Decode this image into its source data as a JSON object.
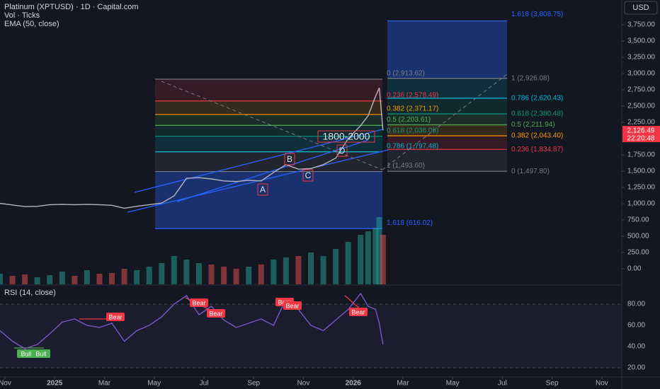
{
  "header": {
    "title": "Platinum (XPTUSD) · 1D · Capital.com",
    "volume": "Vol · Ticks",
    "ema": "EMA (50, close)",
    "currency": "USD"
  },
  "price_tag": {
    "value": "2,126.49",
    "countdown": "22:20:48"
  },
  "chart_data": [
    {
      "type": "line",
      "color": "#b2b5be",
      "x": [
        -0.2,
        0.3,
        0.8,
        1.3,
        1.8,
        2.3,
        2.8,
        3.3,
        3.8,
        4.3,
        4.8,
        5.3,
        5.8,
        6.3,
        6.8,
        7.3,
        7.8,
        8.3,
        8.8,
        9.3,
        9.8,
        10.3,
        10.8,
        11.3,
        11.8,
        12.3,
        12.8,
        13.3,
        13.8,
        14.3,
        14.6,
        14.9,
        15.05,
        15.2
      ],
      "values": [
        1005,
        980,
        955,
        960,
        985,
        990,
        985,
        990,
        985,
        975,
        930,
        960,
        985,
        1010,
        1120,
        1390,
        1400,
        1380,
        1350,
        1340,
        1360,
        1350,
        1480,
        1600,
        1530,
        1540,
        1600,
        1700,
        2000,
        2200,
        2350,
        2650,
        2780,
        2126.49
      ],
      "volume": [
        15,
        12,
        14,
        10,
        13,
        18,
        12,
        20,
        15,
        16,
        22,
        20,
        25,
        30,
        40,
        35,
        30,
        28,
        25,
        22,
        25,
        28,
        35,
        38,
        40,
        45,
        40,
        50,
        60,
        70,
        75,
        80,
        95,
        70
      ],
      "volume_lim": [
        0,
        100
      ],
      "xlim": [
        -0.2,
        24.8
      ],
      "ylim": [
        -239,
        4130
      ],
      "yticks": [
        {
          "value": 3750,
          "label": "3,750.00"
        },
        {
          "value": 3500,
          "label": "3,500.00"
        },
        {
          "value": 3250,
          "label": "3,250.00"
        },
        {
          "value": 3000,
          "label": "3,000.00"
        },
        {
          "value": 2750,
          "label": "2,750.00"
        },
        {
          "value": 2500,
          "label": "2,500.00"
        },
        {
          "value": 2250,
          "label": "2,250.00"
        },
        {
          "value": 1750,
          "label": "1,750.00"
        },
        {
          "value": 1500,
          "label": "1,500.00"
        },
        {
          "value": 1250,
          "label": "1,250.00"
        },
        {
          "value": 1000,
          "label": "1,000.00"
        },
        {
          "value": 750,
          "label": "750.00"
        },
        {
          "value": 500,
          "label": "500.00"
        },
        {
          "value": 250,
          "label": "250.00"
        },
        {
          "value": 0,
          "label": "0.00"
        }
      ],
      "fib_left": [
        {
          "label": "0 (2,913.62)",
          "value": 2913.62,
          "color": "#787b86"
        },
        {
          "label": "0.236 (2,578.49)",
          "value": 2578.49,
          "color": "#f23645"
        },
        {
          "label": "0.382 (2,371.17)",
          "value": 2371.17,
          "color": "#ff9800"
        },
        {
          "label": "0.5 (2,203.61)",
          "value": 2203.61,
          "color": "#4caf50"
        },
        {
          "label": "0.618 (2,036.05)",
          "value": 2036.05,
          "color": "#089981"
        },
        {
          "label": "0.786 (1,797.48)",
          "value": 1797.48,
          "color": "#00bcd4"
        },
        {
          "label": "1 (1,493.60)",
          "value": 1493.6,
          "color": "#787b86"
        },
        {
          "label": "1.618 (616.02)",
          "value": 616.02,
          "color": "#2962ff"
        }
      ],
      "fib_right": [
        {
          "label": "1.618 (3,808.75)",
          "value": 3808.75,
          "color": "#2962ff"
        },
        {
          "label": "1 (2,926.08)",
          "value": 2926.08,
          "color": "#787b86"
        },
        {
          "label": "0.786 (2,620.43)",
          "value": 2620.43,
          "color": "#00bcd4"
        },
        {
          "label": "0.618 (2,380.48)",
          "value": 2380.48,
          "color": "#089981"
        },
        {
          "label": "0.5 (2,211.94)",
          "value": 2211.94,
          "color": "#4caf50"
        },
        {
          "label": "0.382 (2,043.40)",
          "value": 2043.4,
          "color": "#ff9800"
        },
        {
          "label": "0.236 (1,834.87)",
          "value": 1834.87,
          "color": "#f23645"
        },
        {
          "label": "0 (1,497.80)",
          "value": 1497.8,
          "color": "#787b86"
        }
      ],
      "annotations": [
        "A",
        "B",
        "C",
        "D",
        "1800-2000"
      ]
    },
    {
      "type": "line",
      "title": "RSI (14, close)",
      "color": "#7e57c2",
      "x": [
        -0.2,
        0.3,
        0.8,
        1.3,
        1.8,
        2.3,
        2.8,
        3.3,
        3.8,
        4.3,
        4.8,
        5.3,
        5.8,
        6.3,
        6.8,
        7.3,
        7.8,
        8.3,
        8.8,
        9.3,
        9.8,
        10.3,
        10.8,
        11.3,
        11.8,
        12.3,
        12.8,
        13.3,
        13.8,
        14.3,
        14.6,
        14.9,
        15.05,
        15.2
      ],
      "values": [
        55,
        45,
        38,
        42,
        52,
        63,
        66,
        60,
        58,
        62,
        45,
        55,
        60,
        68,
        80,
        88,
        70,
        78,
        65,
        58,
        62,
        66,
        60,
        85,
        75,
        60,
        55,
        65,
        75,
        90,
        78,
        75,
        62,
        42
      ],
      "xlim": [
        -0.2,
        24.8
      ],
      "ylim": [
        11.3,
        96.7
      ],
      "yticks": [
        {
          "value": 80,
          "label": "80.00"
        },
        {
          "value": 60,
          "label": "60.00"
        },
        {
          "value": 40,
          "label": "40.00"
        },
        {
          "value": 20,
          "label": "20.00"
        }
      ],
      "xticks": [
        {
          "value": 0,
          "label": "Nov"
        },
        {
          "value": 2,
          "label": "2025"
        },
        {
          "value": 4,
          "label": "Mar"
        },
        {
          "value": 6,
          "label": "May"
        },
        {
          "value": 8,
          "label": "Jul"
        },
        {
          "value": 10,
          "label": "Sep"
        },
        {
          "value": 12,
          "label": "Nov"
        },
        {
          "value": 14,
          "label": "2026"
        },
        {
          "value": 16,
          "label": "Mar"
        },
        {
          "value": 18,
          "label": "May"
        },
        {
          "value": 20,
          "label": "Jul"
        },
        {
          "value": 22,
          "label": "Sep"
        },
        {
          "value": 24,
          "label": "Nov"
        }
      ],
      "annotations": [
        "Bull",
        "Bull",
        "Bear",
        "Bear",
        "Bear",
        "Bear",
        "Bear",
        "Bear"
      ]
    }
  ]
}
